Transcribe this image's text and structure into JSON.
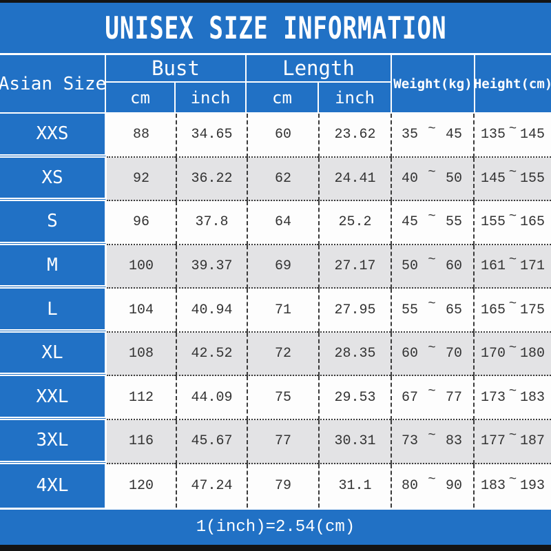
{
  "title": "UNISEX SIZE INFORMATION",
  "colors": {
    "accent_blue": "#2171c5",
    "alt_row_gray": "#e3e3e5",
    "bar_black": "#141414",
    "text_dark": "#333333",
    "text_white": "#ffffff"
  },
  "table": {
    "header": {
      "asian_size": "Asian Size",
      "bust": "Bust",
      "length": "Length",
      "weight": "Weight(kg)",
      "height": "Height(cm)",
      "cm": "cm",
      "inch": "inch"
    },
    "tilde": "~",
    "rows": [
      {
        "size": "XXS",
        "bust_cm": "88",
        "bust_inch": "34.65",
        "length_cm": "60",
        "length_inch": "23.62",
        "weight_min": "35",
        "weight_max": "45",
        "height_min": "135",
        "height_max": "145"
      },
      {
        "size": "XS",
        "bust_cm": "92",
        "bust_inch": "36.22",
        "length_cm": "62",
        "length_inch": "24.41",
        "weight_min": "40",
        "weight_max": "50",
        "height_min": "145",
        "height_max": "155"
      },
      {
        "size": "S",
        "bust_cm": "96",
        "bust_inch": "37.8",
        "length_cm": "64",
        "length_inch": "25.2",
        "weight_min": "45",
        "weight_max": "55",
        "height_min": "155",
        "height_max": "165"
      },
      {
        "size": "M",
        "bust_cm": "100",
        "bust_inch": "39.37",
        "length_cm": "69",
        "length_inch": "27.17",
        "weight_min": "50",
        "weight_max": "60",
        "height_min": "161",
        "height_max": "171"
      },
      {
        "size": "L",
        "bust_cm": "104",
        "bust_inch": "40.94",
        "length_cm": "71",
        "length_inch": "27.95",
        "weight_min": "55",
        "weight_max": "65",
        "height_min": "165",
        "height_max": "175"
      },
      {
        "size": "XL",
        "bust_cm": "108",
        "bust_inch": "42.52",
        "length_cm": "72",
        "length_inch": "28.35",
        "weight_min": "60",
        "weight_max": "70",
        "height_min": "170",
        "height_max": "180"
      },
      {
        "size": "XXL",
        "bust_cm": "112",
        "bust_inch": "44.09",
        "length_cm": "75",
        "length_inch": "29.53",
        "weight_min": "67",
        "weight_max": "77",
        "height_min": "173",
        "height_max": "183"
      },
      {
        "size": "3XL",
        "bust_cm": "116",
        "bust_inch": "45.67",
        "length_cm": "77",
        "length_inch": "30.31",
        "weight_min": "73",
        "weight_max": "83",
        "height_min": "177",
        "height_max": "187"
      },
      {
        "size": "4XL",
        "bust_cm": "120",
        "bust_inch": "47.24",
        "length_cm": "79",
        "length_inch": "31.1",
        "weight_min": "80",
        "weight_max": "90",
        "height_min": "183",
        "height_max": "193"
      }
    ]
  },
  "footer": {
    "conversion_note": "1(inch)=2.54(cm)"
  }
}
